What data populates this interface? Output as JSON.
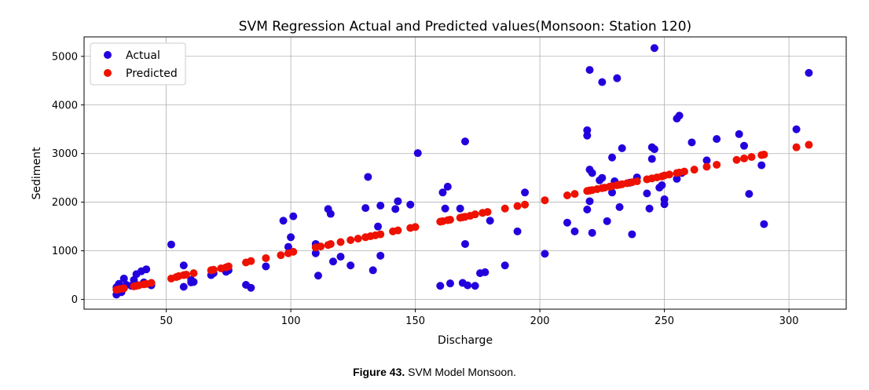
{
  "caption": {
    "label": "Figure 43.",
    "text": " SVM Model Monsoon."
  },
  "chart_data": {
    "type": "scatter",
    "title": "SVM Regression Actual and Predicted values(Monsoon: Station 120)",
    "xlabel": "Discharge",
    "ylabel": "Sediment",
    "xlim": [
      17,
      323
    ],
    "ylim": [
      -200,
      5400
    ],
    "xticks": [
      50,
      100,
      150,
      200,
      250,
      300
    ],
    "yticks": [
      0,
      1000,
      2000,
      3000,
      4000,
      5000
    ],
    "grid": true,
    "legend": "top-left",
    "series": [
      {
        "name": "Actual",
        "color": "#2200dd",
        "points": [
          [
            30,
            250
          ],
          [
            30,
            100
          ],
          [
            31,
            320
          ],
          [
            31,
            160
          ],
          [
            32,
            150
          ],
          [
            33,
            430
          ],
          [
            32,
            180
          ],
          [
            34,
            300
          ],
          [
            36,
            280
          ],
          [
            37,
            400
          ],
          [
            38,
            520
          ],
          [
            38,
            300
          ],
          [
            40,
            580
          ],
          [
            41,
            350
          ],
          [
            42,
            620
          ],
          [
            44,
            290
          ],
          [
            44,
            330
          ],
          [
            52,
            1130
          ],
          [
            57,
            700
          ],
          [
            57,
            260
          ],
          [
            60,
            350
          ],
          [
            60,
            400
          ],
          [
            61,
            360
          ],
          [
            68,
            500
          ],
          [
            69,
            540
          ],
          [
            74,
            570
          ],
          [
            75,
            600
          ],
          [
            82,
            300
          ],
          [
            84,
            240
          ],
          [
            90,
            680
          ],
          [
            97,
            1620
          ],
          [
            99,
            1080
          ],
          [
            100,
            1280
          ],
          [
            101,
            1710
          ],
          [
            110,
            1140
          ],
          [
            110,
            950
          ],
          [
            111,
            490
          ],
          [
            115,
            1860
          ],
          [
            116,
            1760
          ],
          [
            117,
            780
          ],
          [
            120,
            880
          ],
          [
            124,
            700
          ],
          [
            130,
            1880
          ],
          [
            131,
            2520
          ],
          [
            133,
            600
          ],
          [
            135,
            1500
          ],
          [
            136,
            900
          ],
          [
            136,
            1930
          ],
          [
            142,
            1860
          ],
          [
            143,
            2020
          ],
          [
            148,
            1950
          ],
          [
            151,
            3010
          ],
          [
            160,
            280
          ],
          [
            161,
            2200
          ],
          [
            162,
            1870
          ],
          [
            163,
            2320
          ],
          [
            164,
            330
          ],
          [
            168,
            1870
          ],
          [
            169,
            340
          ],
          [
            170,
            3250
          ],
          [
            170,
            1140
          ],
          [
            171,
            290
          ],
          [
            174,
            280
          ],
          [
            176,
            540
          ],
          [
            178,
            560
          ],
          [
            180,
            1620
          ],
          [
            186,
            700
          ],
          [
            191,
            1400
          ],
          [
            194,
            2200
          ],
          [
            202,
            940
          ],
          [
            211,
            1580
          ],
          [
            214,
            1400
          ],
          [
            219,
            3480
          ],
          [
            219,
            3370
          ],
          [
            219,
            1850
          ],
          [
            220,
            2020
          ],
          [
            220,
            2670
          ],
          [
            221,
            1370
          ],
          [
            221,
            2600
          ],
          [
            220,
            4720
          ],
          [
            224,
            2450
          ],
          [
            225,
            2500
          ],
          [
            225,
            4470
          ],
          [
            227,
            1610
          ],
          [
            229,
            2200
          ],
          [
            229,
            2920
          ],
          [
            230,
            2430
          ],
          [
            231,
            4550
          ],
          [
            232,
            1900
          ],
          [
            233,
            3110
          ],
          [
            236,
            2400
          ],
          [
            237,
            1340
          ],
          [
            239,
            2510
          ],
          [
            243,
            2180
          ],
          [
            244,
            1870
          ],
          [
            245,
            3130
          ],
          [
            245,
            2890
          ],
          [
            246,
            3090
          ],
          [
            246,
            5170
          ],
          [
            248,
            2300
          ],
          [
            249,
            2350
          ],
          [
            250,
            2060
          ],
          [
            250,
            1960
          ],
          [
            255,
            3720
          ],
          [
            255,
            2480
          ],
          [
            256,
            3780
          ],
          [
            257,
            2600
          ],
          [
            261,
            3230
          ],
          [
            267,
            2860
          ],
          [
            271,
            3300
          ],
          [
            280,
            3400
          ],
          [
            282,
            3160
          ],
          [
            284,
            2170
          ],
          [
            289,
            2760
          ],
          [
            290,
            1550
          ],
          [
            303,
            3500
          ],
          [
            308,
            4660
          ]
        ]
      },
      {
        "name": "Predicted",
        "color": "#ee1100",
        "points": [
          [
            30,
            200
          ],
          [
            31,
            210
          ],
          [
            32,
            220
          ],
          [
            33,
            230
          ],
          [
            37,
            270
          ],
          [
            38,
            280
          ],
          [
            39,
            290
          ],
          [
            41,
            310
          ],
          [
            42,
            320
          ],
          [
            44,
            340
          ],
          [
            52,
            430
          ],
          [
            54,
            460
          ],
          [
            55,
            480
          ],
          [
            57,
            500
          ],
          [
            58,
            510
          ],
          [
            61,
            540
          ],
          [
            68,
            600
          ],
          [
            69,
            610
          ],
          [
            72,
            640
          ],
          [
            74,
            660
          ],
          [
            75,
            680
          ],
          [
            82,
            760
          ],
          [
            84,
            790
          ],
          [
            90,
            850
          ],
          [
            96,
            910
          ],
          [
            99,
            950
          ],
          [
            101,
            980
          ],
          [
            110,
            1070
          ],
          [
            112,
            1090
          ],
          [
            115,
            1120
          ],
          [
            116,
            1140
          ],
          [
            120,
            1180
          ],
          [
            124,
            1220
          ],
          [
            127,
            1250
          ],
          [
            130,
            1280
          ],
          [
            132,
            1300
          ],
          [
            134,
            1320
          ],
          [
            136,
            1340
          ],
          [
            141,
            1400
          ],
          [
            143,
            1420
          ],
          [
            148,
            1470
          ],
          [
            150,
            1490
          ],
          [
            160,
            1600
          ],
          [
            161,
            1610
          ],
          [
            163,
            1630
          ],
          [
            164,
            1640
          ],
          [
            168,
            1680
          ],
          [
            169,
            1690
          ],
          [
            170,
            1700
          ],
          [
            172,
            1720
          ],
          [
            174,
            1750
          ],
          [
            177,
            1780
          ],
          [
            179,
            1800
          ],
          [
            186,
            1870
          ],
          [
            191,
            1920
          ],
          [
            194,
            1950
          ],
          [
            202,
            2040
          ],
          [
            211,
            2140
          ],
          [
            214,
            2170
          ],
          [
            219,
            2230
          ],
          [
            220,
            2240
          ],
          [
            221,
            2250
          ],
          [
            223,
            2270
          ],
          [
            225,
            2290
          ],
          [
            226,
            2300
          ],
          [
            228,
            2320
          ],
          [
            229,
            2330
          ],
          [
            231,
            2350
          ],
          [
            232,
            2360
          ],
          [
            233,
            2370
          ],
          [
            235,
            2390
          ],
          [
            237,
            2410
          ],
          [
            239,
            2430
          ],
          [
            243,
            2470
          ],
          [
            245,
            2490
          ],
          [
            247,
            2510
          ],
          [
            249,
            2530
          ],
          [
            250,
            2550
          ],
          [
            252,
            2570
          ],
          [
            255,
            2600
          ],
          [
            256,
            2610
          ],
          [
            258,
            2630
          ],
          [
            262,
            2670
          ],
          [
            267,
            2730
          ],
          [
            271,
            2770
          ],
          [
            279,
            2870
          ],
          [
            282,
            2900
          ],
          [
            285,
            2930
          ],
          [
            289,
            2970
          ],
          [
            290,
            2980
          ],
          [
            303,
            3130
          ],
          [
            308,
            3180
          ]
        ]
      }
    ]
  }
}
